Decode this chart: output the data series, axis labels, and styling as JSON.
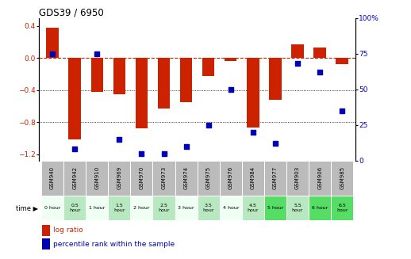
{
  "title": "GDS39 / 6950",
  "samples": [
    "GSM940",
    "GSM942",
    "GSM910",
    "GSM969",
    "GSM970",
    "GSM973",
    "GSM974",
    "GSM975",
    "GSM976",
    "GSM984",
    "GSM977",
    "GSM903",
    "GSM906",
    "GSM985"
  ],
  "times": [
    "0 hour",
    "0.5\nhour",
    "1 hour",
    "1.5\nhour",
    "2 hour",
    "2.5\nhour",
    "3 hour",
    "3.5\nhour",
    "4 hour",
    "4.5\nhour",
    "5 hour",
    "5.5\nhour",
    "6 hour",
    "6.5\nhour"
  ],
  "log_ratio": [
    0.38,
    -1.02,
    -0.42,
    -0.45,
    -0.88,
    -0.63,
    -0.55,
    -0.22,
    -0.04,
    -0.87,
    -0.52,
    0.17,
    0.13,
    -0.08
  ],
  "percentile": [
    75,
    8,
    75,
    15,
    5,
    5,
    10,
    25,
    50,
    20,
    12,
    68,
    62,
    35
  ],
  "time_colors": [
    "#eefff0",
    "#bbeecc",
    "#eefff0",
    "#bbeecc",
    "#eefff0",
    "#bbeecc",
    "#eefff0",
    "#bbeecc",
    "#eefff0",
    "#bbeecc",
    "#44dd66",
    "#bbeecc",
    "#44dd66",
    "#44dd66"
  ],
  "bar_color": "#cc2200",
  "dot_color": "#0000bb",
  "hline_color": "#cc2200",
  "ylim_left": [
    -1.28,
    0.5
  ],
  "ylim_right": [
    0,
    100
  ],
  "yticks_left": [
    0.4,
    0,
    -0.4,
    -0.8,
    -1.2
  ],
  "yticks_right": [
    100,
    75,
    50,
    25,
    0
  ],
  "ytick_right_labels": [
    "100%",
    "75",
    "50",
    "25",
    "0"
  ],
  "ylabel_left_color": "#cc2200",
  "ylabel_right_color": "#0000bb",
  "header_bg": "#bbbbbb",
  "legend_bar_label": "log ratio",
  "legend_dot_label": "percentile rank within the sample"
}
